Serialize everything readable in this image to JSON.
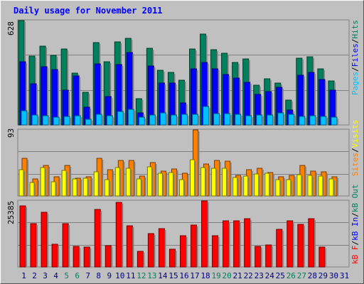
{
  "title": "Daily usage for November 2011",
  "colors": {
    "hits": "#00805c",
    "files": "#0000ff",
    "pages": "#00c0ff",
    "visits": "#ffff00",
    "sites": "#ff8000",
    "kb_f": "#ff0000",
    "kb_in": "#0000ff",
    "kb_out": "#00805c",
    "weekend_day": "#00805c",
    "weekday": "#000080"
  },
  "chart_data": [
    {
      "type": "bar",
      "title": "Daily usage for November 2011",
      "ymax_label": "628",
      "ylim": [
        0,
        628
      ],
      "legend": [
        {
          "key": "pages",
          "label": "Pages"
        },
        {
          "key": "sep1",
          "label": "/"
        },
        {
          "key": "files",
          "label": "Files"
        },
        {
          "key": "sep2",
          "label": "/"
        },
        {
          "key": "hits",
          "label": "Hits"
        }
      ],
      "categories": [
        "1",
        "2",
        "3",
        "4",
        "5",
        "6",
        "7",
        "8",
        "9",
        "10",
        "11",
        "12",
        "13",
        "14",
        "15",
        "16",
        "17",
        "18",
        "19",
        "20",
        "21",
        "22",
        "23",
        "24",
        "25",
        "26",
        "27",
        "28",
        "29",
        "30",
        "31"
      ],
      "weekend_days": [
        "5",
        "6",
        "12",
        "13",
        "19",
        "20",
        "26",
        "27"
      ],
      "series": [
        {
          "name": "Hits",
          "values": [
            628,
            415,
            473,
            417,
            456,
            313,
            195,
            494,
            380,
            498,
            523,
            156,
            461,
            330,
            317,
            271,
            455,
            547,
            454,
            430,
            375,
            398,
            238,
            276,
            253,
            150,
            401,
            411,
            338,
            266,
            0
          ]
        },
        {
          "name": "Files",
          "values": [
            382,
            247,
            351,
            333,
            208,
            293,
            107,
            368,
            170,
            363,
            435,
            72,
            353,
            254,
            254,
            131,
            339,
            374,
            336,
            304,
            282,
            258,
            182,
            202,
            228,
            91,
            299,
            317,
            272,
            209,
            0
          ]
        },
        {
          "name": "Pages",
          "values": [
            86,
            59,
            55,
            49,
            52,
            57,
            33,
            63,
            56,
            82,
            92,
            46,
            59,
            71,
            61,
            63,
            64,
            110,
            68,
            67,
            65,
            55,
            60,
            58,
            72,
            62,
            51,
            56,
            51,
            49,
            0
          ]
        }
      ]
    },
    {
      "type": "bar",
      "ymax_label": "93",
      "ylim": [
        0,
        93
      ],
      "legend": [
        {
          "key": "sites",
          "label": "Sites"
        },
        {
          "key": "sep1",
          "label": "/"
        },
        {
          "key": "visits",
          "label": "Visits"
        }
      ],
      "series": [
        {
          "name": "Visits",
          "values": [
            37,
            19,
            40,
            20,
            36,
            24,
            25,
            34,
            23,
            40,
            39,
            24,
            41,
            32,
            33,
            23,
            51,
            40,
            39,
            39,
            26,
            28,
            31,
            32,
            23,
            23,
            30,
            29,
            28,
            24,
            0
          ]
        },
        {
          "name": "Sites",
          "values": [
            53,
            24,
            43,
            27,
            43,
            25,
            27,
            53,
            37,
            50,
            50,
            28,
            47,
            35,
            38,
            32,
            93,
            45,
            50,
            49,
            29,
            37,
            39,
            33,
            27,
            29,
            43,
            35,
            34,
            27,
            0
          ]
        }
      ]
    },
    {
      "type": "bar",
      "ymax_label": "25385",
      "ylim": [
        0,
        25385
      ],
      "legend": [
        {
          "key": "kb_f",
          "label": "kB F"
        },
        {
          "key": "sep1",
          "label": "/"
        },
        {
          "key": "kb_in",
          "label": "kB In"
        },
        {
          "key": "sep2",
          "label": "/"
        },
        {
          "key": "kb_out",
          "label": "kB Out"
        }
      ],
      "series": [
        {
          "name": "kB F",
          "values": [
            23470,
            16770,
            20910,
            8770,
            16770,
            7840,
            7560,
            22180,
            8090,
            24740,
            15880,
            5870,
            12850,
            14690,
            6890,
            11910,
            16210,
            25385,
            12070,
            17790,
            17680,
            18560,
            7970,
            8430,
            14590,
            17680,
            16300,
            18560,
            7560,
            0,
            0
          ]
        }
      ]
    }
  ]
}
